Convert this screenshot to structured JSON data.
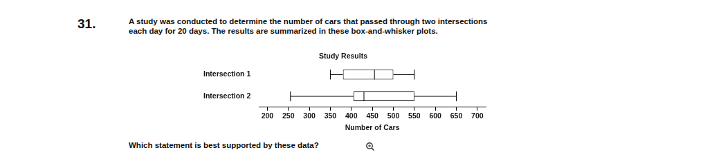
{
  "question_number": "31.",
  "question": [
    "A study was conducted to determine the number of cars that passed through two intersections",
    "each day for 20 days. The results are summarized in these box-and-whisker plots."
  ],
  "prompt": "Which statement is best supported by these data?",
  "chart_data": {
    "type": "boxplot",
    "title": "Study Results",
    "categories": [
      "Intersection 1",
      "Intersection 2"
    ],
    "boxes": [
      {
        "min": 350,
        "q1": 380,
        "median": 455,
        "q3": 500,
        "max": 550
      },
      {
        "min": 255,
        "q1": 405,
        "median": 430,
        "q3": 550,
        "max": 650
      }
    ],
    "orientation": "horizontal",
    "xlabel": "Number of Cars",
    "xlim": [
      180,
      720
    ],
    "xticks": [
      200,
      250,
      300,
      350,
      400,
      450,
      500,
      550,
      600,
      650,
      700
    ],
    "grid": false,
    "color": "#000000"
  }
}
